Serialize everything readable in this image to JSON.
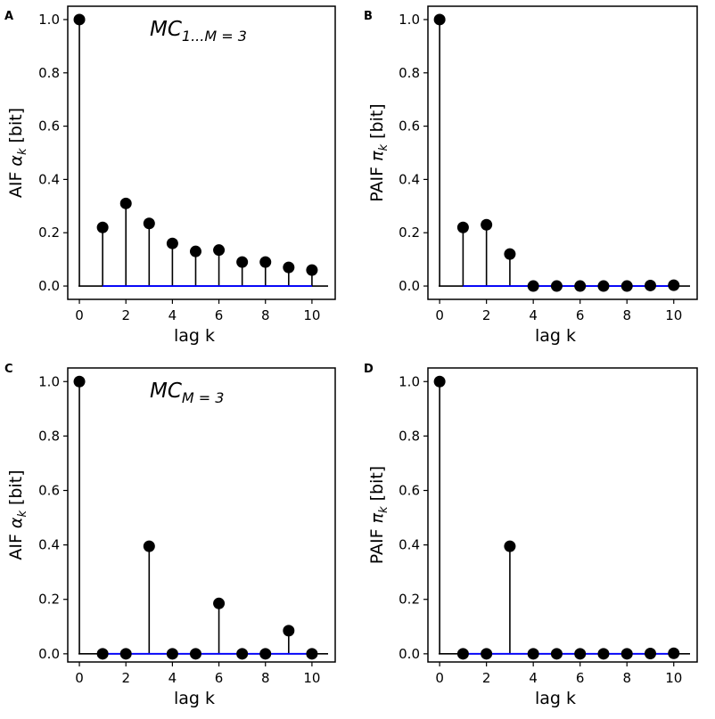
{
  "chart_data": [
    {
      "panel": "A",
      "type": "stem",
      "xlabel": "lag k",
      "ylabel": {
        "prefix": "AIF ",
        "symbol": "α",
        "sub": "k",
        "suffix": " [bit]"
      },
      "annotation": {
        "main": "MC",
        "sub": "1...M = 3"
      },
      "x": [
        0,
        1,
        2,
        3,
        4,
        5,
        6,
        7,
        8,
        9,
        10
      ],
      "values": [
        1.0,
        0.22,
        0.31,
        0.235,
        0.16,
        0.13,
        0.135,
        0.09,
        0.09,
        0.07,
        0.06
      ],
      "xlim": [
        -0.5,
        11
      ],
      "ylim": [
        -0.05,
        1.05
      ],
      "xticks": [
        "0",
        "2",
        "4",
        "6",
        "8",
        "10"
      ],
      "yticks": [
        "0.0",
        "0.2",
        "0.4",
        "0.6",
        "0.8",
        "1.0"
      ],
      "baseline": {
        "from": 1,
        "to": 10,
        "color": "#0000ff"
      }
    },
    {
      "panel": "B",
      "type": "stem",
      "xlabel": "lag k",
      "ylabel": {
        "prefix": "PAIF ",
        "symbol": "π",
        "sub": "k",
        "suffix": " [bit]"
      },
      "annotation": null,
      "x": [
        0,
        1,
        2,
        3,
        4,
        5,
        6,
        7,
        8,
        9,
        10
      ],
      "values": [
        1.0,
        0.22,
        0.23,
        0.12,
        0.0,
        0.0,
        0.0,
        0.0,
        0.0,
        0.002,
        0.003
      ],
      "xlim": [
        -0.5,
        11
      ],
      "ylim": [
        -0.05,
        1.05
      ],
      "xticks": [
        "0",
        "2",
        "4",
        "6",
        "8",
        "10"
      ],
      "yticks": [
        "0.0",
        "0.2",
        "0.4",
        "0.6",
        "0.8",
        "1.0"
      ],
      "baseline": {
        "from": 1,
        "to": 10,
        "color": "#0000ff"
      }
    },
    {
      "panel": "C",
      "type": "stem",
      "xlabel": "lag k",
      "ylabel": {
        "prefix": "AIF ",
        "symbol": "α",
        "sub": "k",
        "suffix": " [bit]"
      },
      "annotation": {
        "main": "MC",
        "sub": "M = 3"
      },
      "x": [
        0,
        1,
        2,
        3,
        4,
        5,
        6,
        7,
        8,
        9,
        10
      ],
      "values": [
        1.0,
        0.0,
        0.0,
        0.395,
        0.0,
        0.0,
        0.185,
        0.0,
        0.0,
        0.085,
        0.0
      ],
      "xlim": [
        -0.5,
        11
      ],
      "ylim": [
        -0.03,
        1.05
      ],
      "xticks": [
        "0",
        "2",
        "4",
        "6",
        "8",
        "10"
      ],
      "yticks": [
        "0.0",
        "0.2",
        "0.4",
        "0.6",
        "0.8",
        "1.0"
      ],
      "baseline": {
        "from": 1,
        "to": 10,
        "color": "#0000ff"
      }
    },
    {
      "panel": "D",
      "type": "stem",
      "xlabel": "lag k",
      "ylabel": {
        "prefix": "PAIF ",
        "symbol": "π",
        "sub": "k",
        "suffix": " [bit]"
      },
      "annotation": null,
      "x": [
        0,
        1,
        2,
        3,
        4,
        5,
        6,
        7,
        8,
        9,
        10
      ],
      "values": [
        1.0,
        0.0,
        0.0,
        0.395,
        0.0,
        0.0,
        0.0,
        0.0,
        0.0,
        0.001,
        0.002
      ],
      "xlim": [
        -0.5,
        11
      ],
      "ylim": [
        -0.03,
        1.05
      ],
      "xticks": [
        "0",
        "2",
        "4",
        "6",
        "8",
        "10"
      ],
      "yticks": [
        "0.0",
        "0.2",
        "0.4",
        "0.6",
        "0.8",
        "1.0"
      ],
      "baseline": {
        "from": 1,
        "to": 10,
        "color": "#0000ff"
      }
    }
  ],
  "colors": {
    "stem": "#000000",
    "marker": "#000000",
    "baseline": "#0000ff"
  }
}
